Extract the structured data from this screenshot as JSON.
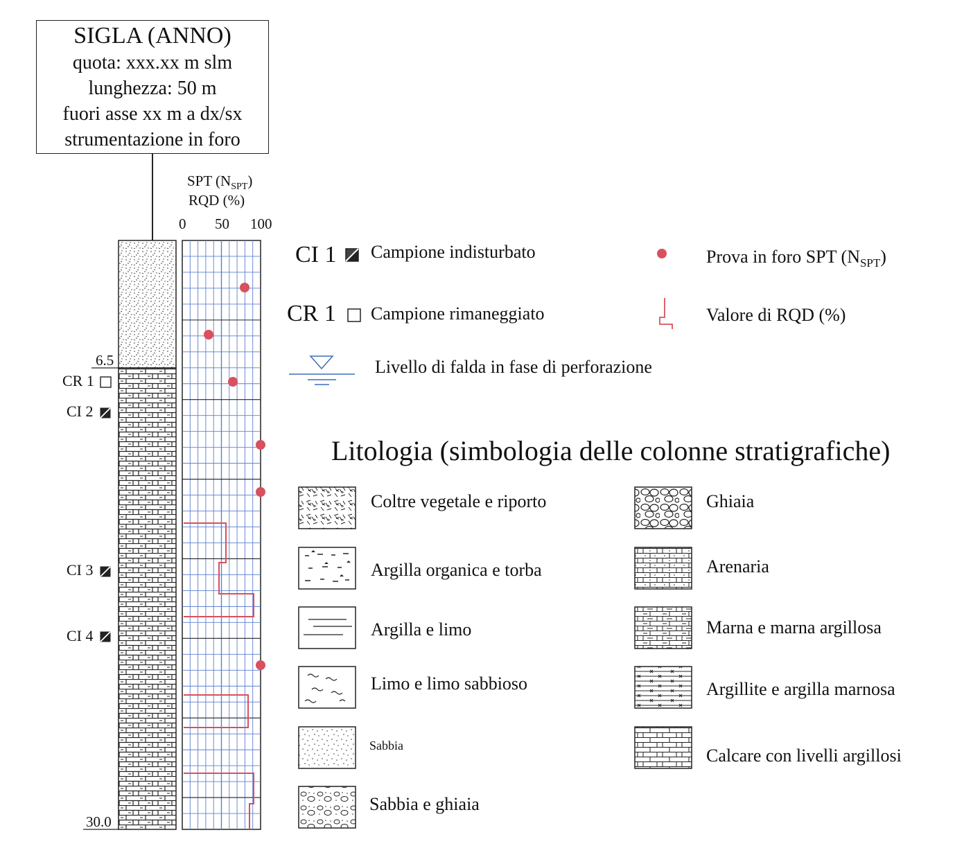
{
  "header": {
    "title": "SIGLA (ANNO)",
    "lines": [
      "quota: xxx.xx m slm",
      "lunghezza: 50 m",
      "fuori asse xx m a dx/sx",
      "strumentazione in foro"
    ]
  },
  "graph": {
    "label_main": "SPT (N",
    "label_sub": "SPT",
    "label_close": ")",
    "label_rqd": "RQD (%)",
    "ticks": [
      "0",
      "50",
      "100"
    ]
  },
  "column": {
    "depth_top_layer": "6.5",
    "depth_bottom": "30.0",
    "samples": [
      {
        "label": "CR 1",
        "kind": "rimaneggiato"
      },
      {
        "label": "CI 2",
        "kind": "indisturbato"
      },
      {
        "label": "CI 3",
        "kind": "indisturbato"
      },
      {
        "label": "CI 4",
        "kind": "indisturbato"
      }
    ]
  },
  "legend": {
    "ci_code": "CI 1",
    "ci_label": "Campione indisturbato",
    "cr_code": "CR 1",
    "cr_label": "Campione rimaneggiato",
    "spt_label": "Prova in foro SPT (N",
    "spt_sub": "SPT",
    "spt_close": ")",
    "rqd_label": "Valore di RQD (%)",
    "falda_label": "Livello di falda in fase di perforazione",
    "spt_color": "#d9505e",
    "rqd_color": "#d9505e",
    "falda_color": "#3a6fb5",
    "grid_color": "#5b7fd0"
  },
  "lithology": {
    "title": "Litologia (simbologia delle colonne stratigrafiche)",
    "left": [
      {
        "label": "Coltre vegetale e riporto",
        "icon": "riporto-pattern"
      },
      {
        "label": "Argilla organica e torba",
        "icon": "torba-pattern"
      },
      {
        "label": "Argilla e limo",
        "icon": "argilla-pattern"
      },
      {
        "label": "Limo e limo sabbioso",
        "icon": "limo-pattern"
      },
      {
        "label": "Sabbia",
        "icon": "sabbia-pattern"
      },
      {
        "label": "Sabbia e ghiaia",
        "icon": "sabbia-ghiaia-pattern"
      }
    ],
    "right": [
      {
        "label": "Ghiaia",
        "icon": "ghiaia-pattern"
      },
      {
        "label": "Arenaria",
        "icon": "arenaria-pattern"
      },
      {
        "label": "Marna e marna argillosa",
        "icon": "marna-pattern"
      },
      {
        "label": "Argillite e argilla marnosa",
        "icon": "argillite-pattern"
      },
      {
        "label": "Calcare con livelli argillosi",
        "icon": "calcare-pattern"
      }
    ]
  }
}
